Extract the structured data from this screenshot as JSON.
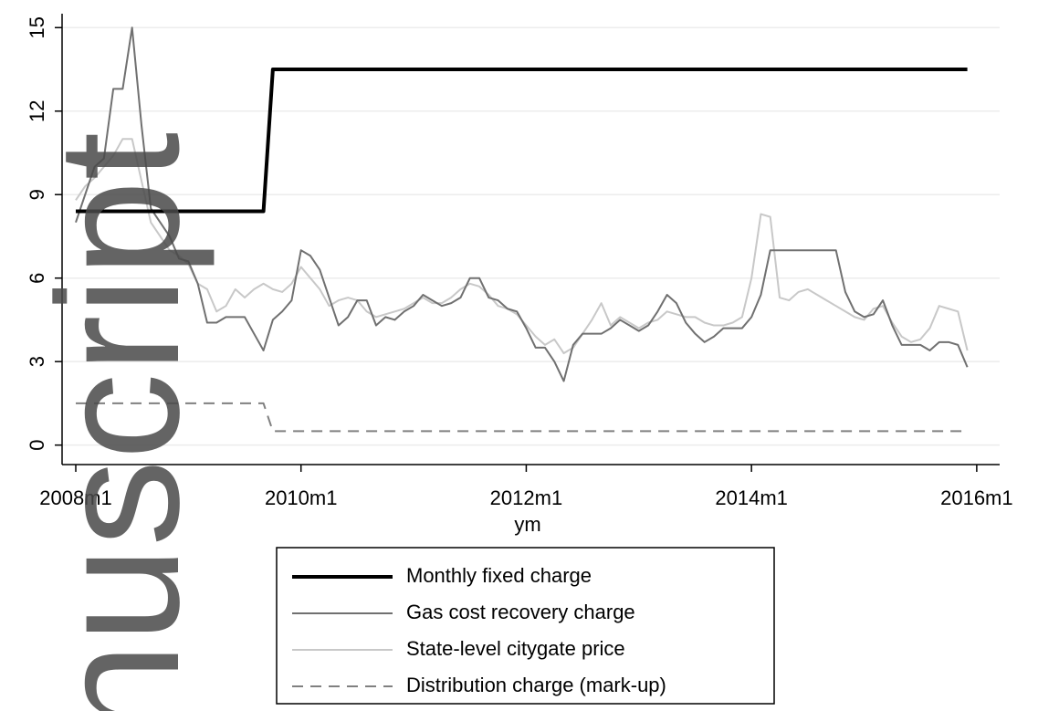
{
  "chart_data": {
    "type": "line",
    "x_label": "ym",
    "watermark": "nuscript",
    "x": [
      "2008m1",
      "2008m2",
      "2008m3",
      "2008m4",
      "2008m5",
      "2008m6",
      "2008m7",
      "2008m8",
      "2008m9",
      "2008m10",
      "2008m11",
      "2008m12",
      "2009m1",
      "2009m2",
      "2009m3",
      "2009m4",
      "2009m5",
      "2009m6",
      "2009m7",
      "2009m8",
      "2009m9",
      "2009m10",
      "2009m11",
      "2009m12",
      "2010m1",
      "2010m2",
      "2010m3",
      "2010m4",
      "2010m5",
      "2010m6",
      "2010m7",
      "2010m8",
      "2010m9",
      "2010m10",
      "2010m11",
      "2010m12",
      "2011m1",
      "2011m2",
      "2011m3",
      "2011m4",
      "2011m5",
      "2011m6",
      "2011m7",
      "2011m8",
      "2011m9",
      "2011m10",
      "2011m11",
      "2011m12",
      "2012m1",
      "2012m2",
      "2012m3",
      "2012m4",
      "2012m5",
      "2012m6",
      "2012m7",
      "2012m8",
      "2012m9",
      "2012m10",
      "2012m11",
      "2012m12",
      "2013m1",
      "2013m2",
      "2013m3",
      "2013m4",
      "2013m5",
      "2013m6",
      "2013m7",
      "2013m8",
      "2013m9",
      "2013m10",
      "2013m11",
      "2013m12",
      "2014m1",
      "2014m2",
      "2014m3",
      "2014m4",
      "2014m5",
      "2014m6",
      "2014m7",
      "2014m8",
      "2014m9",
      "2014m10",
      "2014m11",
      "2014m12",
      "2015m1",
      "2015m2",
      "2015m3",
      "2015m4",
      "2015m5",
      "2015m6",
      "2015m7",
      "2015m8",
      "2015m9",
      "2015m10",
      "2015m11",
      "2015m12"
    ],
    "xticks": [
      "2008m1",
      "2010m1",
      "2012m1",
      "2014m1",
      "2016m1"
    ],
    "ylim": [
      -0.7,
      15.5
    ],
    "yticks": [
      0,
      3,
      6,
      9,
      12,
      15
    ],
    "grid": true,
    "series": [
      {
        "name": "Monthly fixed charge",
        "color": "#000000",
        "width": 4,
        "dash": false,
        "values": [
          8.4,
          8.4,
          8.4,
          8.4,
          8.4,
          8.4,
          8.4,
          8.4,
          8.4,
          8.4,
          8.4,
          8.4,
          8.4,
          8.4,
          8.4,
          8.4,
          8.4,
          8.4,
          8.4,
          8.4,
          8.4,
          13.5,
          13.5,
          13.5,
          13.5,
          13.5,
          13.5,
          13.5,
          13.5,
          13.5,
          13.5,
          13.5,
          13.5,
          13.5,
          13.5,
          13.5,
          13.5,
          13.5,
          13.5,
          13.5,
          13.5,
          13.5,
          13.5,
          13.5,
          13.5,
          13.5,
          13.5,
          13.5,
          13.5,
          13.5,
          13.5,
          13.5,
          13.5,
          13.5,
          13.5,
          13.5,
          13.5,
          13.5,
          13.5,
          13.5,
          13.5,
          13.5,
          13.5,
          13.5,
          13.5,
          13.5,
          13.5,
          13.5,
          13.5,
          13.5,
          13.5,
          13.5,
          13.5,
          13.5,
          13.5,
          13.5,
          13.5,
          13.5,
          13.5,
          13.5,
          13.5,
          13.5,
          13.5,
          13.5,
          13.5,
          13.5,
          13.5,
          13.5,
          13.5,
          13.5,
          13.5,
          13.5,
          13.5,
          13.5,
          13.5,
          13.5
        ]
      },
      {
        "name": "Gas cost recovery charge",
        "color": "#707070",
        "width": 2,
        "dash": false,
        "values": [
          8.0,
          9.0,
          10.0,
          10.3,
          12.8,
          12.8,
          15.0,
          11.5,
          8.5,
          8.0,
          7.5,
          6.7,
          6.6,
          5.8,
          4.4,
          4.4,
          4.6,
          4.6,
          4.6,
          4.0,
          3.4,
          4.5,
          4.8,
          5.2,
          7.0,
          6.8,
          6.3,
          5.3,
          4.3,
          4.6,
          5.2,
          5.2,
          4.3,
          4.6,
          4.5,
          4.8,
          5.0,
          5.4,
          5.2,
          5.0,
          5.1,
          5.3,
          6.0,
          6.0,
          5.3,
          5.2,
          4.9,
          4.8,
          4.2,
          3.5,
          3.5,
          3.0,
          2.3,
          3.6,
          4.0,
          4.0,
          4.0,
          4.2,
          4.5,
          4.3,
          4.1,
          4.3,
          4.8,
          5.4,
          5.1,
          4.4,
          4.0,
          3.7,
          3.9,
          4.2,
          4.2,
          4.2,
          4.6,
          5.4,
          7.0,
          7.0,
          7.0,
          7.0,
          7.0,
          7.0,
          7.0,
          7.0,
          5.5,
          4.8,
          4.6,
          4.7,
          5.2,
          4.3,
          3.6,
          3.6,
          3.6,
          3.4,
          3.7,
          3.7,
          3.6,
          2.8
        ]
      },
      {
        "name": "State-level citygate price",
        "color": "#c8c8c8",
        "width": 2,
        "dash": false,
        "values": [
          8.8,
          9.3,
          9.6,
          10.0,
          10.4,
          11.0,
          11.0,
          9.5,
          8.0,
          7.5,
          7.0,
          6.8,
          6.5,
          5.8,
          5.6,
          4.8,
          5.0,
          5.6,
          5.3,
          5.6,
          5.8,
          5.6,
          5.5,
          5.8,
          6.4,
          6.0,
          5.6,
          5.0,
          5.2,
          5.3,
          5.2,
          4.8,
          4.6,
          4.7,
          4.8,
          4.9,
          5.1,
          5.3,
          5.1,
          5.1,
          5.3,
          5.6,
          5.8,
          5.7,
          5.4,
          5.0,
          4.9,
          4.7,
          4.3,
          3.9,
          3.6,
          3.8,
          3.3,
          3.5,
          4.0,
          4.5,
          5.1,
          4.3,
          4.6,
          4.4,
          4.2,
          4.4,
          4.5,
          4.8,
          4.7,
          4.6,
          4.6,
          4.4,
          4.3,
          4.3,
          4.4,
          4.6,
          6.0,
          8.3,
          8.2,
          5.3,
          5.2,
          5.5,
          5.6,
          5.4,
          5.2,
          5.0,
          4.8,
          4.6,
          4.5,
          4.9,
          5.0,
          4.4,
          3.9,
          3.7,
          3.8,
          4.2,
          5.0,
          4.9,
          4.8,
          3.4
        ]
      },
      {
        "name": "Distribution charge (mark-up)",
        "color": "#808080",
        "width": 2,
        "dash": true,
        "values": [
          1.5,
          1.5,
          1.5,
          1.5,
          1.5,
          1.5,
          1.5,
          1.5,
          1.5,
          1.5,
          1.5,
          1.5,
          1.5,
          1.5,
          1.5,
          1.5,
          1.5,
          1.5,
          1.5,
          1.5,
          1.5,
          0.5,
          0.5,
          0.5,
          0.5,
          0.5,
          0.5,
          0.5,
          0.5,
          0.5,
          0.5,
          0.5,
          0.5,
          0.5,
          0.5,
          0.5,
          0.5,
          0.5,
          0.5,
          0.5,
          0.5,
          0.5,
          0.5,
          0.5,
          0.5,
          0.5,
          0.5,
          0.5,
          0.5,
          0.5,
          0.5,
          0.5,
          0.5,
          0.5,
          0.5,
          0.5,
          0.5,
          0.5,
          0.5,
          0.5,
          0.5,
          0.5,
          0.5,
          0.5,
          0.5,
          0.5,
          0.5,
          0.5,
          0.5,
          0.5,
          0.5,
          0.5,
          0.5,
          0.5,
          0.5,
          0.5,
          0.5,
          0.5,
          0.5,
          0.5,
          0.5,
          0.5,
          0.5,
          0.5,
          0.5,
          0.5,
          0.5,
          0.5,
          0.5,
          0.5,
          0.5,
          0.5,
          0.5,
          0.5,
          0.5,
          0.5
        ]
      }
    ]
  }
}
